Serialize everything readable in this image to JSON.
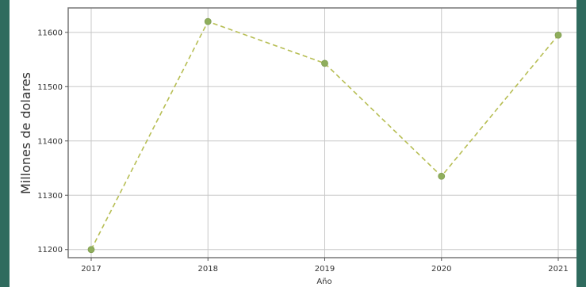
{
  "chart_data": {
    "type": "line",
    "title": "",
    "xlabel": "Año",
    "ylabel": "Millones de dolares",
    "x": [
      2017,
      2018,
      2019,
      2020,
      2021
    ],
    "series": [
      {
        "values": [
          11200,
          11620,
          11543,
          11335,
          11595
        ]
      }
    ],
    "ylim": [
      11185,
      11645
    ],
    "yticks": [
      11200,
      11300,
      11400,
      11500,
      11600
    ],
    "grid": true,
    "line_style": "dashed",
    "colors": {
      "line": "#b7be54",
      "marker": "#8fae5c",
      "frame": "#777777",
      "grid": "#c8c8c8"
    }
  }
}
